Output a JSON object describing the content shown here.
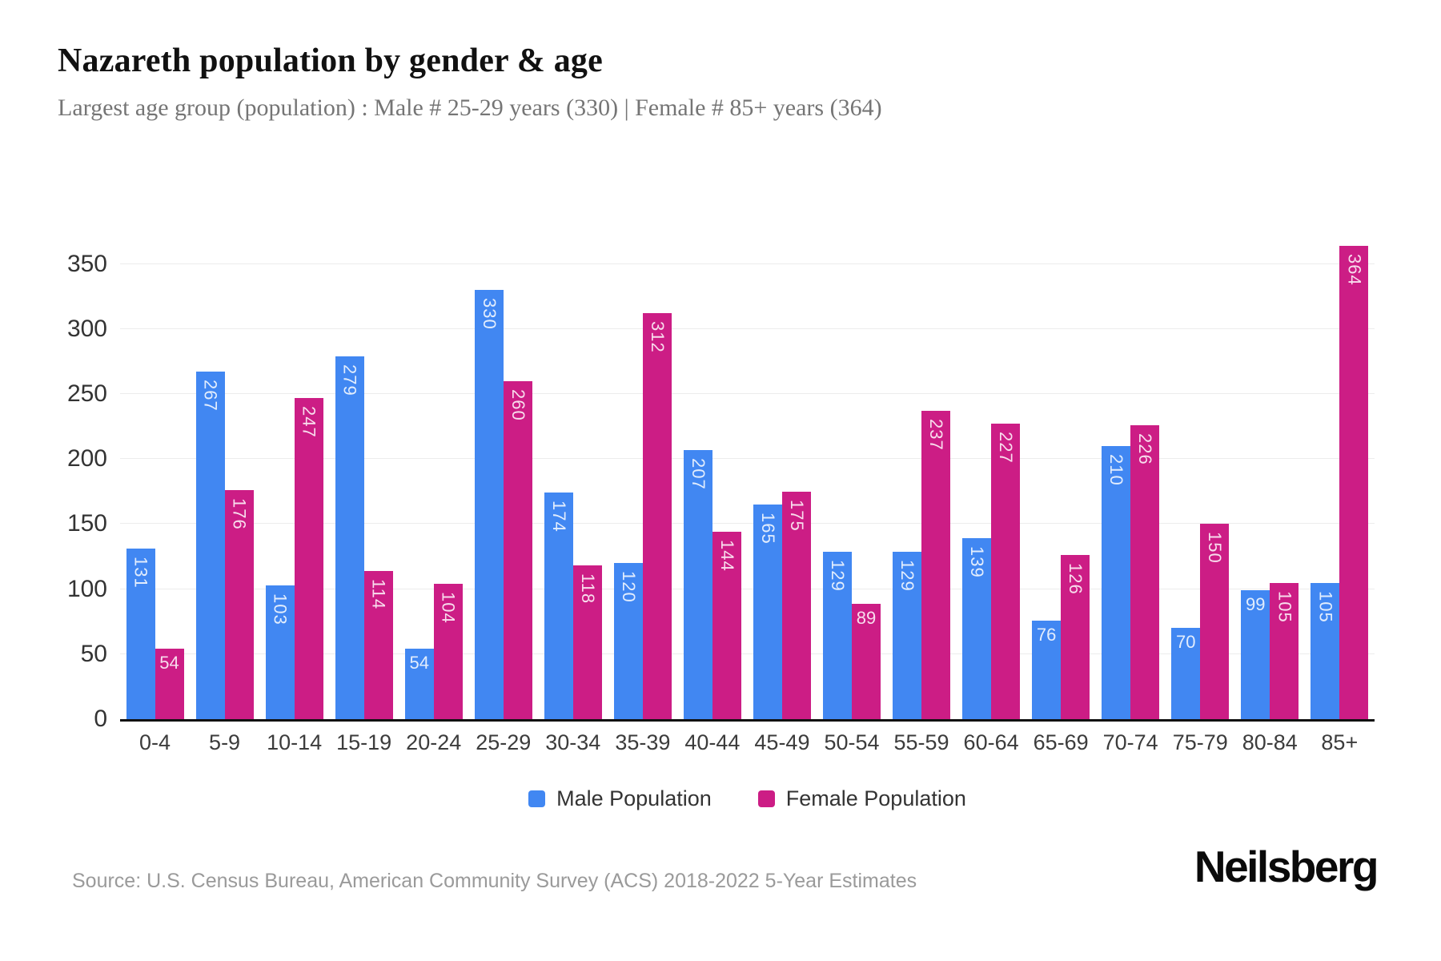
{
  "header": {
    "title": "Nazareth population by gender & age",
    "subtitle": "Largest age group (population) : Male # 25-29 years (330) | Female # 85+ years (364)"
  },
  "chart_data": {
    "type": "bar",
    "title": "Nazareth population by gender & age",
    "categories": [
      "0-4",
      "5-9",
      "10-14",
      "15-19",
      "20-24",
      "25-29",
      "30-34",
      "35-39",
      "40-44",
      "45-49",
      "50-54",
      "55-59",
      "60-64",
      "65-69",
      "70-74",
      "75-79",
      "80-84",
      "85+"
    ],
    "series": [
      {
        "name": "Male Population",
        "color": "#4187F2",
        "values": [
          131,
          267,
          103,
          279,
          54,
          330,
          174,
          120,
          207,
          165,
          129,
          129,
          139,
          76,
          210,
          70,
          99,
          105
        ]
      },
      {
        "name": "Female Population",
        "color": "#CC1D85",
        "values": [
          54,
          176,
          247,
          114,
          104,
          260,
          118,
          312,
          144,
          175,
          89,
          237,
          227,
          126,
          226,
          150,
          105,
          364
        ]
      }
    ],
    "xlabel": "",
    "ylabel": "",
    "ylim": [
      0,
      388
    ],
    "yticks": [
      0,
      50,
      100,
      150,
      200,
      250,
      300,
      350
    ],
    "grid": true,
    "legend_position": "bottom",
    "colors": {
      "axis": "#111111",
      "gridline": "#ececec",
      "tick_text": "#333333",
      "bar_label": "rgba(255,255,255,0.85)"
    }
  },
  "footer": {
    "source": "Source: U.S. Census Bureau, American Community Survey (ACS) 2018-2022 5-Year Estimates",
    "brand": "Neilsberg"
  }
}
